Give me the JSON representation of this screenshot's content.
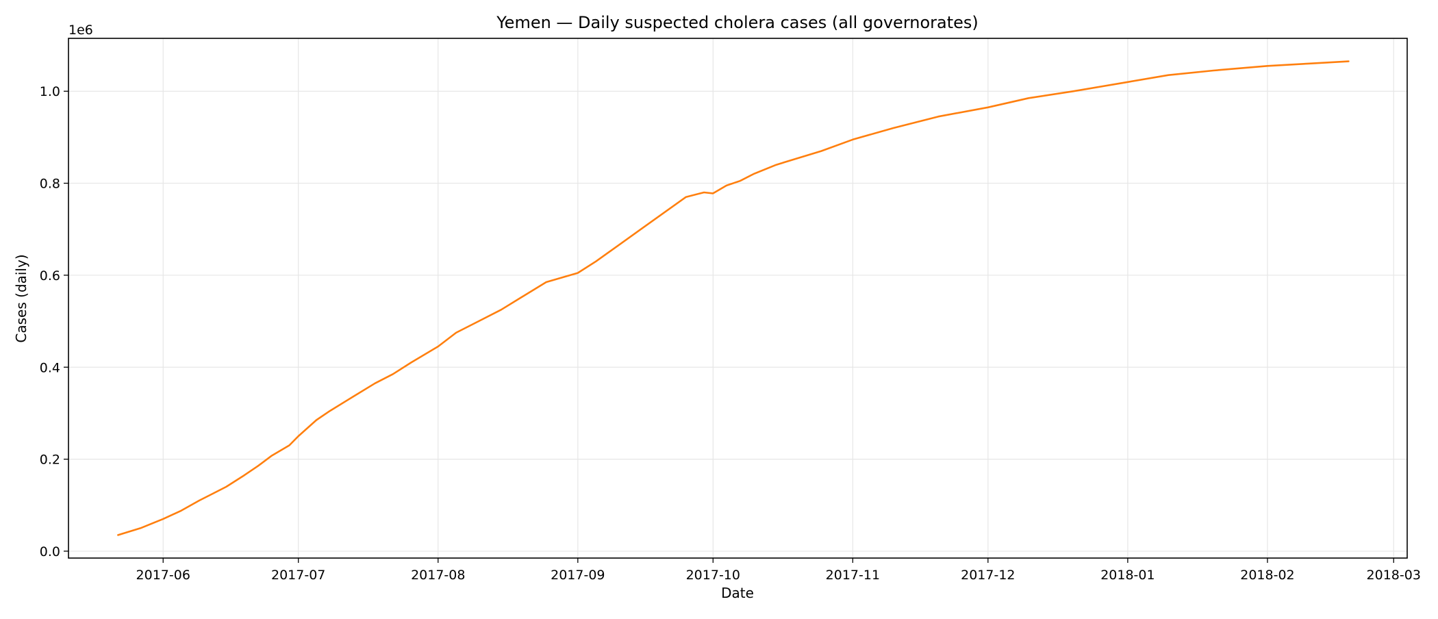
{
  "chart_data": {
    "type": "line",
    "title": "Yemen — Daily suspected cholera cases (all governorates)",
    "xlabel": "Date",
    "ylabel": "Cases (daily)",
    "y_multiplier_label": "1e6",
    "x_axis_type": "date",
    "xlim": [
      "2017-05-11",
      "2018-03-04"
    ],
    "ylim": [
      -0.015,
      1.115
    ],
    "y_unit_scale": 1000000,
    "grid": true,
    "x_ticks": [
      {
        "date": "2017-06-01",
        "label": "2017-06"
      },
      {
        "date": "2017-07-01",
        "label": "2017-07"
      },
      {
        "date": "2017-08-01",
        "label": "2017-08"
      },
      {
        "date": "2017-09-01",
        "label": "2017-09"
      },
      {
        "date": "2017-10-01",
        "label": "2017-10"
      },
      {
        "date": "2017-11-01",
        "label": "2017-11"
      },
      {
        "date": "2017-12-01",
        "label": "2017-12"
      },
      {
        "date": "2018-01-01",
        "label": "2018-01"
      },
      {
        "date": "2018-02-01",
        "label": "2018-02"
      },
      {
        "date": "2018-03-01",
        "label": "2018-03"
      }
    ],
    "y_ticks": [
      {
        "value": 0.0,
        "label": "0.0"
      },
      {
        "value": 0.2,
        "label": "0.2"
      },
      {
        "value": 0.4,
        "label": "0.4"
      },
      {
        "value": 0.6,
        "label": "0.6"
      },
      {
        "value": 0.8,
        "label": "0.8"
      },
      {
        "value": 1.0,
        "label": "1.0"
      }
    ],
    "series": [
      {
        "color": "#ff7f0e",
        "x": [
          "2017-05-22",
          "2017-05-27",
          "2017-06-01",
          "2017-06-05",
          "2017-06-09",
          "2017-06-12",
          "2017-06-15",
          "2017-06-19",
          "2017-06-22",
          "2017-06-25",
          "2017-06-29",
          "2017-07-01",
          "2017-07-05",
          "2017-07-08",
          "2017-07-13",
          "2017-07-18",
          "2017-07-22",
          "2017-07-26",
          "2017-08-01",
          "2017-08-05",
          "2017-08-10",
          "2017-08-15",
          "2017-08-20",
          "2017-08-25",
          "2017-09-01",
          "2017-09-05",
          "2017-09-10",
          "2017-09-15",
          "2017-09-20",
          "2017-09-25",
          "2017-09-29",
          "2017-10-01",
          "2017-10-04",
          "2017-10-07",
          "2017-10-10",
          "2017-10-15",
          "2017-10-20",
          "2017-10-25",
          "2017-11-01",
          "2017-11-10",
          "2017-11-20",
          "2017-12-01",
          "2017-12-10",
          "2017-12-20",
          "2018-01-01",
          "2018-01-10",
          "2018-01-20",
          "2018-02-01",
          "2018-02-10",
          "2018-02-19"
        ],
        "y": [
          35000,
          50000,
          70000,
          88000,
          110000,
          125000,
          140000,
          165000,
          185000,
          207000,
          230000,
          250000,
          285000,
          305000,
          335000,
          365000,
          385000,
          410000,
          445000,
          475000,
          500000,
          525000,
          555000,
          585000,
          605000,
          630000,
          665000,
          700000,
          735000,
          770000,
          780000,
          778000,
          795000,
          805000,
          820000,
          840000,
          855000,
          870000,
          895000,
          920000,
          945000,
          965000,
          985000,
          1000000,
          1020000,
          1035000,
          1045000,
          1055000,
          1060000,
          1065000
        ]
      }
    ]
  }
}
